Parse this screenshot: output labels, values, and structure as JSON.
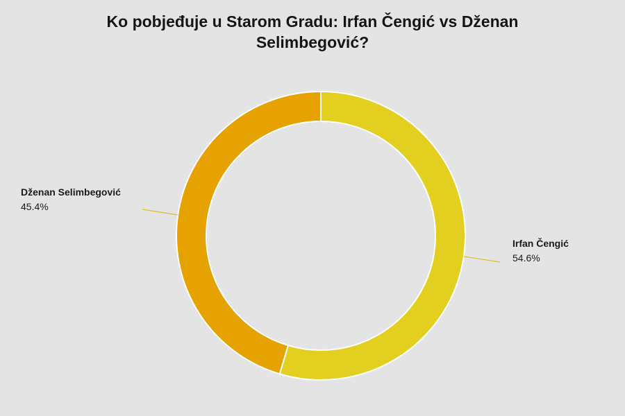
{
  "chart_data": {
    "type": "pie",
    "title": "Ko pobjeđuje u Starom Gradu: Irfan Čengić vs Dženan Selimbegović?",
    "slices": [
      {
        "label": "Irfan Čengić",
        "value": 54.6,
        "value_label": "54.6%",
        "color": "#e3cf1f"
      },
      {
        "label": "Dženan Selimbegović",
        "value": 45.4,
        "value_label": "45.4%",
        "color": "#e5a200"
      }
    ],
    "donut": true
  },
  "colors": {
    "background": "#e4e4e4",
    "leader_line": "#d9c020"
  }
}
